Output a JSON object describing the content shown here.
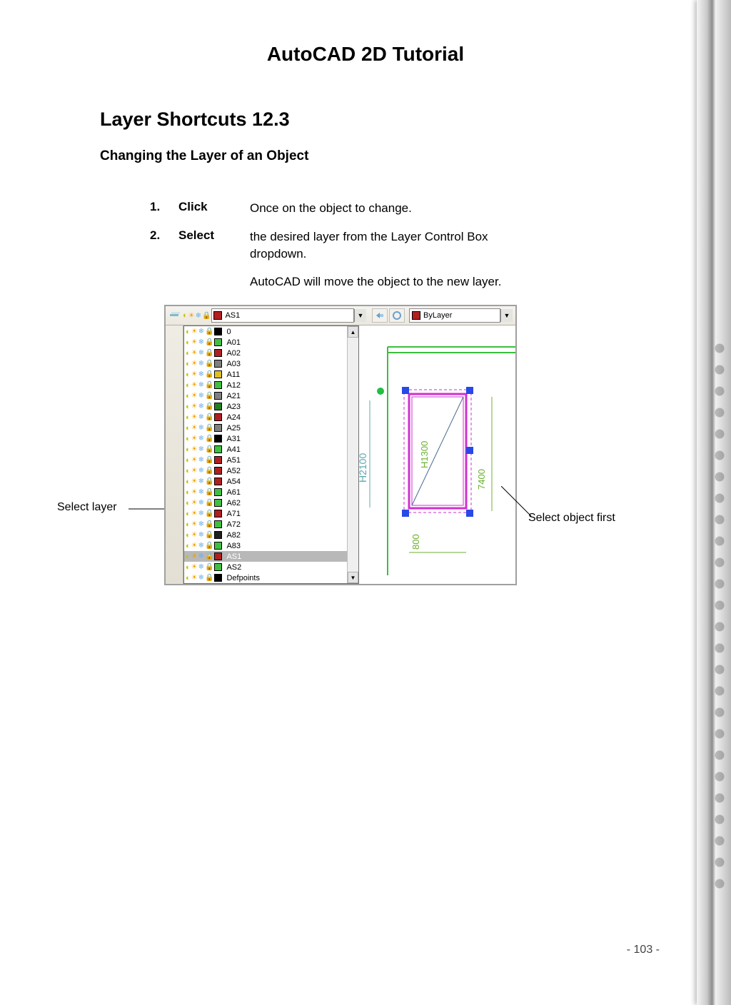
{
  "doc": {
    "title": "AutoCAD 2D Tutorial",
    "section": "Layer Shortcuts 12.3",
    "subtitle": "Changing the Layer of an Object",
    "page_number": "- 103 -"
  },
  "steps": [
    {
      "num": "1.",
      "verb": "Click",
      "text": "Once on the object to change."
    },
    {
      "num": "2.",
      "verb": "Select",
      "text": "the desired layer from the Layer Control Box dropdown."
    }
  ],
  "note": "AutoCAD will move the object to the new layer.",
  "callouts": {
    "left": "Select layer",
    "right": "Select object first"
  },
  "toolbar": {
    "current_layer": "AS1",
    "current_swatch": "#b02020",
    "bylayer_label": "ByLayer",
    "bylayer_swatch": "#b02020"
  },
  "layers": [
    {
      "name": "0",
      "color": "#000000"
    },
    {
      "name": "A01",
      "color": "#40c040"
    },
    {
      "name": "A02",
      "color": "#b02020"
    },
    {
      "name": "A03",
      "color": "#808080"
    },
    {
      "name": "A11",
      "color": "#e0c020"
    },
    {
      "name": "A12",
      "color": "#40c040"
    },
    {
      "name": "A21",
      "color": "#808080"
    },
    {
      "name": "A23",
      "color": "#208020"
    },
    {
      "name": "A24",
      "color": "#b02020"
    },
    {
      "name": "A25",
      "color": "#808080"
    },
    {
      "name": "A31",
      "color": "#000000"
    },
    {
      "name": "A41",
      "color": "#40c040"
    },
    {
      "name": "A51",
      "color": "#b02020"
    },
    {
      "name": "A52",
      "color": "#b02020"
    },
    {
      "name": "A54",
      "color": "#b02020"
    },
    {
      "name": "A61",
      "color": "#40c040"
    },
    {
      "name": "A62",
      "color": "#40c040"
    },
    {
      "name": "A71",
      "color": "#b02020"
    },
    {
      "name": "A72",
      "color": "#40c040"
    },
    {
      "name": "A82",
      "color": "#202020"
    },
    {
      "name": "A83",
      "color": "#40c040"
    },
    {
      "name": "AS1",
      "color": "#b02020",
      "selected": true
    },
    {
      "name": "AS2",
      "color": "#40c040"
    },
    {
      "name": "Defpoints",
      "color": "#000000"
    }
  ],
  "drawing": {
    "dim_labels": {
      "h2100": "H2100",
      "h1300": "H1300",
      "w800": "800",
      "w7400": "7400"
    },
    "colors": {
      "wall": "#3cbf3c",
      "door_frame": "#d030d0",
      "grip": "#2848e8",
      "grip_green": "#20c040",
      "dim_text": "#5aa8b0",
      "dim_text2": "#6cb030"
    }
  }
}
